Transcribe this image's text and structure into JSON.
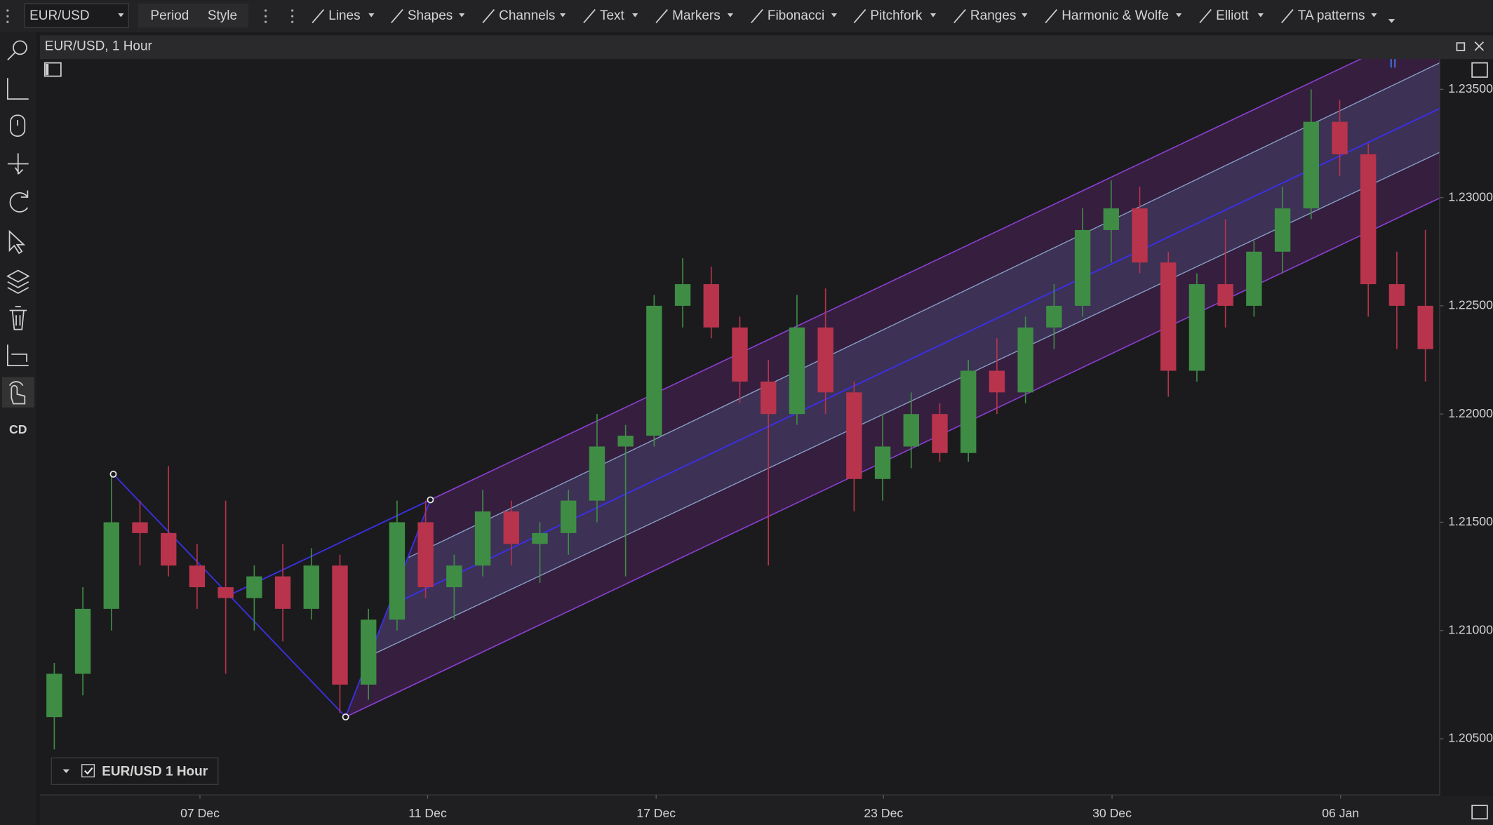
{
  "toolbar": {
    "symbol": "EUR/USD",
    "buttons": [
      "Period",
      "Style"
    ],
    "tools": [
      "Lines",
      "Shapes",
      "Channels",
      "Text",
      "Markers",
      "Fibonacci",
      "Pitchfork",
      "Ranges",
      "Harmonic & Wolfe",
      "Elliott",
      "TA patterns"
    ]
  },
  "sidebar": {
    "label": "CD"
  },
  "chart_data": {
    "type": "candlestick",
    "title": "EUR/USD, 1 Hour",
    "legend": "EUR/USD 1 Hour",
    "up_color": "#3f8d45",
    "down_color": "#b8344c",
    "open": [
      1.206,
      1.208,
      1.211,
      1.215,
      1.2145,
      1.213,
      1.212,
      1.2115,
      1.2125,
      1.211,
      1.213,
      1.2075,
      1.2105,
      1.215,
      1.212,
      1.213,
      1.2155,
      1.214,
      1.2145,
      1.216,
      1.2185,
      1.219,
      1.225,
      1.226,
      1.224,
      1.2215,
      1.22,
      1.224,
      1.221,
      1.217,
      1.2185,
      1.22,
      1.2182,
      1.222,
      1.221,
      1.224,
      1.225,
      1.2285,
      1.2295,
      1.227,
      1.222,
      1.226,
      1.225,
      1.2275,
      1.2295,
      1.2335,
      1.232,
      1.226,
      1.225
    ],
    "high": [
      1.2085,
      1.212,
      1.2172,
      1.216,
      1.2176,
      1.214,
      1.216,
      1.213,
      1.214,
      1.2138,
      1.2135,
      1.211,
      1.216,
      1.216,
      1.2135,
      1.2165,
      1.216,
      1.215,
      1.2165,
      1.22,
      1.2195,
      1.2255,
      1.2272,
      1.2268,
      1.2245,
      1.2225,
      1.2255,
      1.2258,
      1.2215,
      1.22,
      1.221,
      1.2205,
      1.2225,
      1.2235,
      1.2245,
      1.226,
      1.2295,
      1.2308,
      1.2305,
      1.2275,
      1.2265,
      1.229,
      1.228,
      1.2305,
      1.235,
      1.2345,
      1.2325,
      1.2275,
      1.2285
    ],
    "low": [
      1.2045,
      1.207,
      1.21,
      1.213,
      1.2125,
      1.211,
      1.208,
      1.21,
      1.2095,
      1.2105,
      1.2062,
      1.2068,
      1.21,
      1.2115,
      1.2105,
      1.2125,
      1.213,
      1.2122,
      1.2135,
      1.215,
      1.2125,
      1.2185,
      1.224,
      1.2235,
      1.2205,
      1.213,
      1.2195,
      1.22,
      1.2155,
      1.216,
      1.2175,
      1.2178,
      1.2178,
      1.22,
      1.2205,
      1.223,
      1.2245,
      1.227,
      1.2265,
      1.2208,
      1.2215,
      1.224,
      1.2245,
      1.2265,
      1.229,
      1.231,
      1.2245,
      1.223,
      1.2215
    ],
    "close": [
      1.208,
      1.211,
      1.215,
      1.2145,
      1.213,
      1.212,
      1.2115,
      1.2125,
      1.211,
      1.213,
      1.2075,
      1.2105,
      1.215,
      1.212,
      1.213,
      1.2155,
      1.214,
      1.2145,
      1.216,
      1.2185,
      1.219,
      1.225,
      1.226,
      1.224,
      1.2215,
      1.22,
      1.224,
      1.221,
      1.217,
      1.2185,
      1.22,
      1.2182,
      1.222,
      1.221,
      1.224,
      1.225,
      1.2285,
      1.2295,
      1.227,
      1.222,
      1.226,
      1.225,
      1.2275,
      1.2295,
      1.2335,
      1.232,
      1.226,
      1.225,
      1.223
    ],
    "xlim": [
      0,
      49
    ],
    "xticks": [
      {
        "value": 5.6,
        "label": "07 Dec"
      },
      {
        "value": 13.57,
        "label": "11 Dec"
      },
      {
        "value": 21.57,
        "label": "17 Dec"
      },
      {
        "value": 29.53,
        "label": "23 Dec"
      },
      {
        "value": 37.53,
        "label": "30 Dec"
      },
      {
        "value": 45.53,
        "label": "06 Jan"
      }
    ],
    "ylim": [
      1.2024,
      1.2364
    ],
    "yticks": [
      {
        "value": 1.205,
        "label": "1.20500"
      },
      {
        "value": 1.21,
        "label": "1.21000"
      },
      {
        "value": 1.215,
        "label": "1.21500"
      },
      {
        "value": 1.22,
        "label": "1.22000"
      },
      {
        "value": 1.225,
        "label": "1.22500"
      },
      {
        "value": 1.23,
        "label": "1.23000"
      },
      {
        "value": 1.235,
        "label": "1.23500"
      }
    ]
  }
}
